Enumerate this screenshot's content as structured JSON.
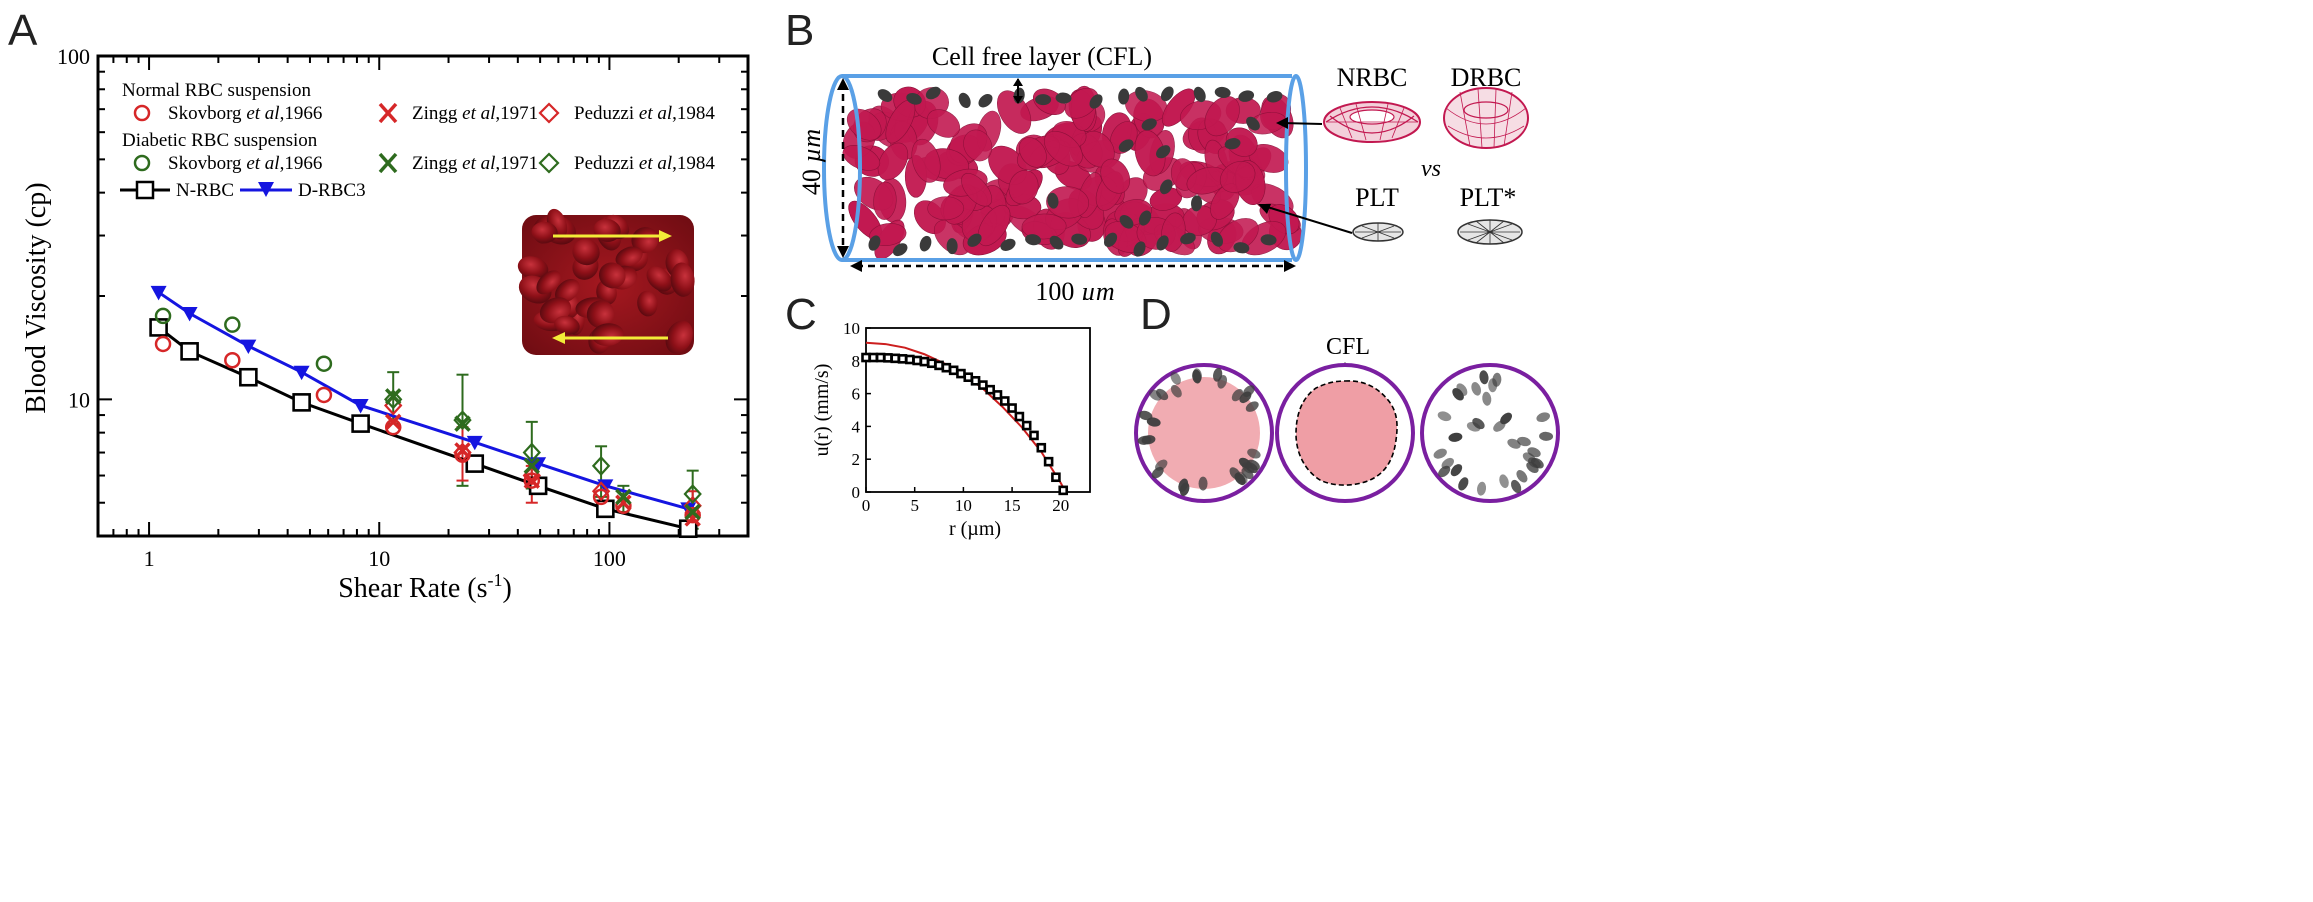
{
  "panel_labels": {
    "a": "A",
    "b": "B",
    "c": "C",
    "d": "D"
  },
  "colors": {
    "red": "#d62728",
    "green": "#2e6b1e",
    "black": "#000000",
    "blue": "#1515e0",
    "rbc": "#c21850",
    "plt": "#3a3a3a",
    "tube": "#5aa0e6",
    "ring": "#7a1fa0",
    "core": "#ef9ea5",
    "curve": "#cc1e1e",
    "yellow": "#f2ec38"
  },
  "chart_data": [
    {
      "type": "line",
      "id": "A",
      "xlabel": "Shear Rate (s",
      "xlabel_sup": "-1",
      "xlabel_tail": ")",
      "ylabel": "Blood Viscosity (cp)",
      "xscale": "log",
      "yscale": "log",
      "xlim": [
        0.6,
        400
      ],
      "ylim": [
        4,
        100
      ],
      "xticks": [
        1,
        10,
        100
      ],
      "xticklabels": [
        "1",
        "10",
        "100"
      ],
      "yticks": [
        10,
        100
      ],
      "yticklabels": [
        "10",
        "100"
      ],
      "legend": {
        "header_normal": "Normal RBC suspension",
        "header_diabetic": "Diabetic RBC suspension",
        "entries": [
          {
            "prefix": "Skovborg ",
            "italic": "et al",
            "suffix": ",1966"
          },
          {
            "prefix": "Zingg ",
            "italic": "et al",
            "suffix": ",1971"
          },
          {
            "prefix": "Peduzzi ",
            "italic": "et al",
            "suffix": ",1984"
          }
        ],
        "nrbc": "N-RBC",
        "drbc": "D-RBC3"
      },
      "series": [
        {
          "name": "N-RBC",
          "color": "#000000",
          "marker": "square",
          "line": true,
          "x": [
            1.1,
            1.5,
            2.7,
            4.6,
            8.3,
            26,
            49,
            96,
            220
          ],
          "y": [
            16.2,
            13.8,
            11.6,
            9.8,
            8.5,
            6.5,
            5.6,
            4.8,
            4.2
          ]
        },
        {
          "name": "D-RBC3",
          "color": "#1515e0",
          "marker": "triangle",
          "line": true,
          "x": [
            1.1,
            1.5,
            2.7,
            4.6,
            8.3,
            26,
            49,
            96,
            220
          ],
          "y": [
            20.5,
            17.8,
            14.3,
            12.0,
            9.6,
            7.5,
            6.5,
            5.6,
            4.8
          ]
        },
        {
          "name": "Normal Skovborg et al,1966",
          "color": "#d62728",
          "marker": "circle",
          "x": [
            1.15,
            2.3,
            5.75,
            11.5,
            23,
            46,
            92,
            115,
            230
          ],
          "y": [
            14.5,
            13.0,
            10.3,
            8.3,
            6.9,
            5.8,
            5.2,
            4.9,
            4.6
          ]
        },
        {
          "name": "Normal Zingg et al,1971",
          "color": "#d62728",
          "marker": "x",
          "x": [
            11.5,
            23,
            46,
            115,
            230
          ],
          "y": [
            8.6,
            7.1,
            5.8,
            5.0,
            4.5
          ]
        },
        {
          "name": "Normal Peduzzi et al,1984",
          "color": "#d62728",
          "marker": "diamond",
          "x": [
            11.5,
            23,
            46,
            92,
            230
          ],
          "y": [
            9.6,
            7.0,
            6.0,
            5.4,
            4.9
          ]
        },
        {
          "name": "Diabetic Skovborg et al,1966",
          "color": "#2e6b1e",
          "marker": "circle",
          "x": [
            1.15,
            2.3,
            5.75
          ],
          "y": [
            17.5,
            16.5,
            12.7
          ]
        },
        {
          "name": "Diabetic Zingg et al,1971",
          "color": "#2e6b1e",
          "marker": "x",
          "x": [
            11.5,
            23,
            46,
            115,
            230
          ],
          "y": [
            10.2,
            8.5,
            6.4,
            5.2,
            4.7
          ]
        },
        {
          "name": "Diabetic Peduzzi et al,1984",
          "color": "#2e6b1e",
          "marker": "diamond",
          "x": [
            11.5,
            23,
            46,
            92,
            230
          ],
          "y": [
            10.0,
            8.7,
            7.0,
            6.4,
            5.3
          ]
        }
      ],
      "error_bars": [
        {
          "x": 11.5,
          "lo": 8.5,
          "hi": 12.0,
          "color": "#2e6b1e"
        },
        {
          "x": 23,
          "lo": 5.6,
          "hi": 11.8,
          "color": "#2e6b1e"
        },
        {
          "x": 23,
          "lo": 5.8,
          "hi": 8.3,
          "color": "#d62728"
        },
        {
          "x": 46,
          "lo": 5.5,
          "hi": 8.6,
          "color": "#2e6b1e"
        },
        {
          "x": 46,
          "lo": 5.0,
          "hi": 6.4,
          "color": "#d62728"
        },
        {
          "x": 92,
          "lo": 5.2,
          "hi": 7.3,
          "color": "#2e6b1e"
        },
        {
          "x": 115,
          "lo": 4.7,
          "hi": 5.6,
          "color": "#2e6b1e"
        },
        {
          "x": 230,
          "lo": 4.2,
          "hi": 6.2,
          "color": "#2e6b1e"
        },
        {
          "x": 230,
          "lo": 4.3,
          "hi": 5.4,
          "color": "#d62728"
        }
      ]
    },
    {
      "type": "line",
      "id": "C",
      "xlabel": "r (µm)",
      "ylabel": "u(r) (mm/s)",
      "xlim": [
        0,
        23
      ],
      "ylim": [
        0,
        10
      ],
      "xticks": [
        0,
        5,
        10,
        15,
        20
      ],
      "xticklabels": [
        "0",
        "5",
        "10",
        "15",
        "20"
      ],
      "yticks": [
        0,
        2,
        4,
        6,
        8,
        10
      ],
      "yticklabels": [
        "0",
        "2",
        "4",
        "6",
        "8",
        "10"
      ],
      "series": [
        {
          "name": "parabolic fit",
          "color": "#cc1e1e",
          "marker": "none",
          "line": true,
          "x": [
            0,
            2,
            4,
            6,
            8,
            10,
            12,
            14,
            16,
            18,
            20,
            20.5
          ],
          "y": [
            9.1,
            9.02,
            8.8,
            8.4,
            7.85,
            7.2,
            6.3,
            5.2,
            3.95,
            2.45,
            0.55,
            0.0
          ]
        },
        {
          "name": "simulation",
          "color": "#000000",
          "marker": "square",
          "line": false,
          "x": [
            0,
            0.75,
            1.5,
            2.25,
            3,
            3.75,
            4.5,
            5.25,
            6,
            6.75,
            7.5,
            8.25,
            9,
            9.75,
            10.5,
            11.25,
            12,
            12.75,
            13.5,
            14.25,
            15,
            15.75,
            16.5,
            17.25,
            18,
            18.75,
            19.5,
            20.25
          ],
          "y": [
            8.2,
            8.2,
            8.2,
            8.18,
            8.15,
            8.12,
            8.08,
            8.02,
            7.95,
            7.85,
            7.72,
            7.58,
            7.42,
            7.22,
            7.0,
            6.78,
            6.52,
            6.24,
            5.92,
            5.55,
            5.12,
            4.6,
            4.05,
            3.45,
            2.7,
            1.85,
            0.9,
            0.1
          ]
        }
      ]
    }
  ],
  "panel_b": {
    "cfl_label": "Cell free layer (CFL)",
    "diameter_label": "40 ",
    "length_label": "100 ",
    "unit": "µm",
    "nrbc": "NRBC",
    "drbc": "DRBC",
    "vs": "vs",
    "plt": "PLT",
    "plt_star": "PLT*"
  },
  "panel_d": {
    "cfl_label": "CFL"
  }
}
